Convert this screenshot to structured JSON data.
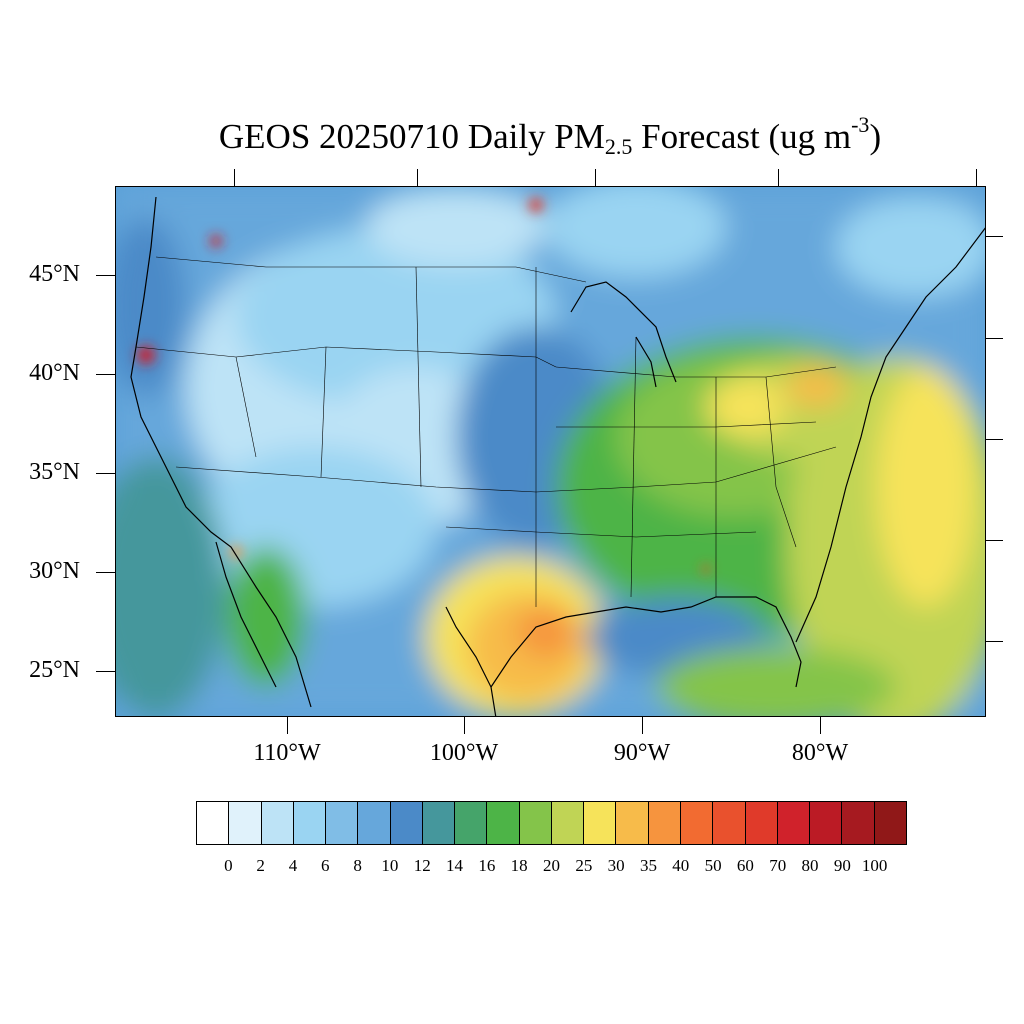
{
  "title": {
    "prefix": "GEOS 20250710 Daily PM",
    "subscript": "2.5",
    "middle": " Forecast (ug m",
    "superscript": "-3",
    "suffix": ")"
  },
  "map": {
    "lat_labels": [
      "45°N",
      "40°N",
      "35°N",
      "30°N",
      "25°N"
    ],
    "lon_labels": [
      "110°W",
      "100°W",
      "90°W",
      "80°W"
    ]
  },
  "colorbar": {
    "colors": [
      "#ffffff",
      "#e0f2fb",
      "#bde3f6",
      "#9ad4f2",
      "#80bde6",
      "#66a7db",
      "#4b8ac8",
      "#45979c",
      "#45a46a",
      "#4db447",
      "#84c44a",
      "#c0d455",
      "#f6e35a",
      "#f7bb4a",
      "#f6943e",
      "#f26b31",
      "#e9512d",
      "#e03a2a",
      "#d0222b",
      "#bb1b25",
      "#a61a20",
      "#901818"
    ],
    "labels": [
      "0",
      "2",
      "4",
      "6",
      "8",
      "10",
      "12",
      "14",
      "16",
      "18",
      "20",
      "25",
      "30",
      "35",
      "40",
      "50",
      "60",
      "70",
      "80",
      "90",
      "100"
    ]
  }
}
